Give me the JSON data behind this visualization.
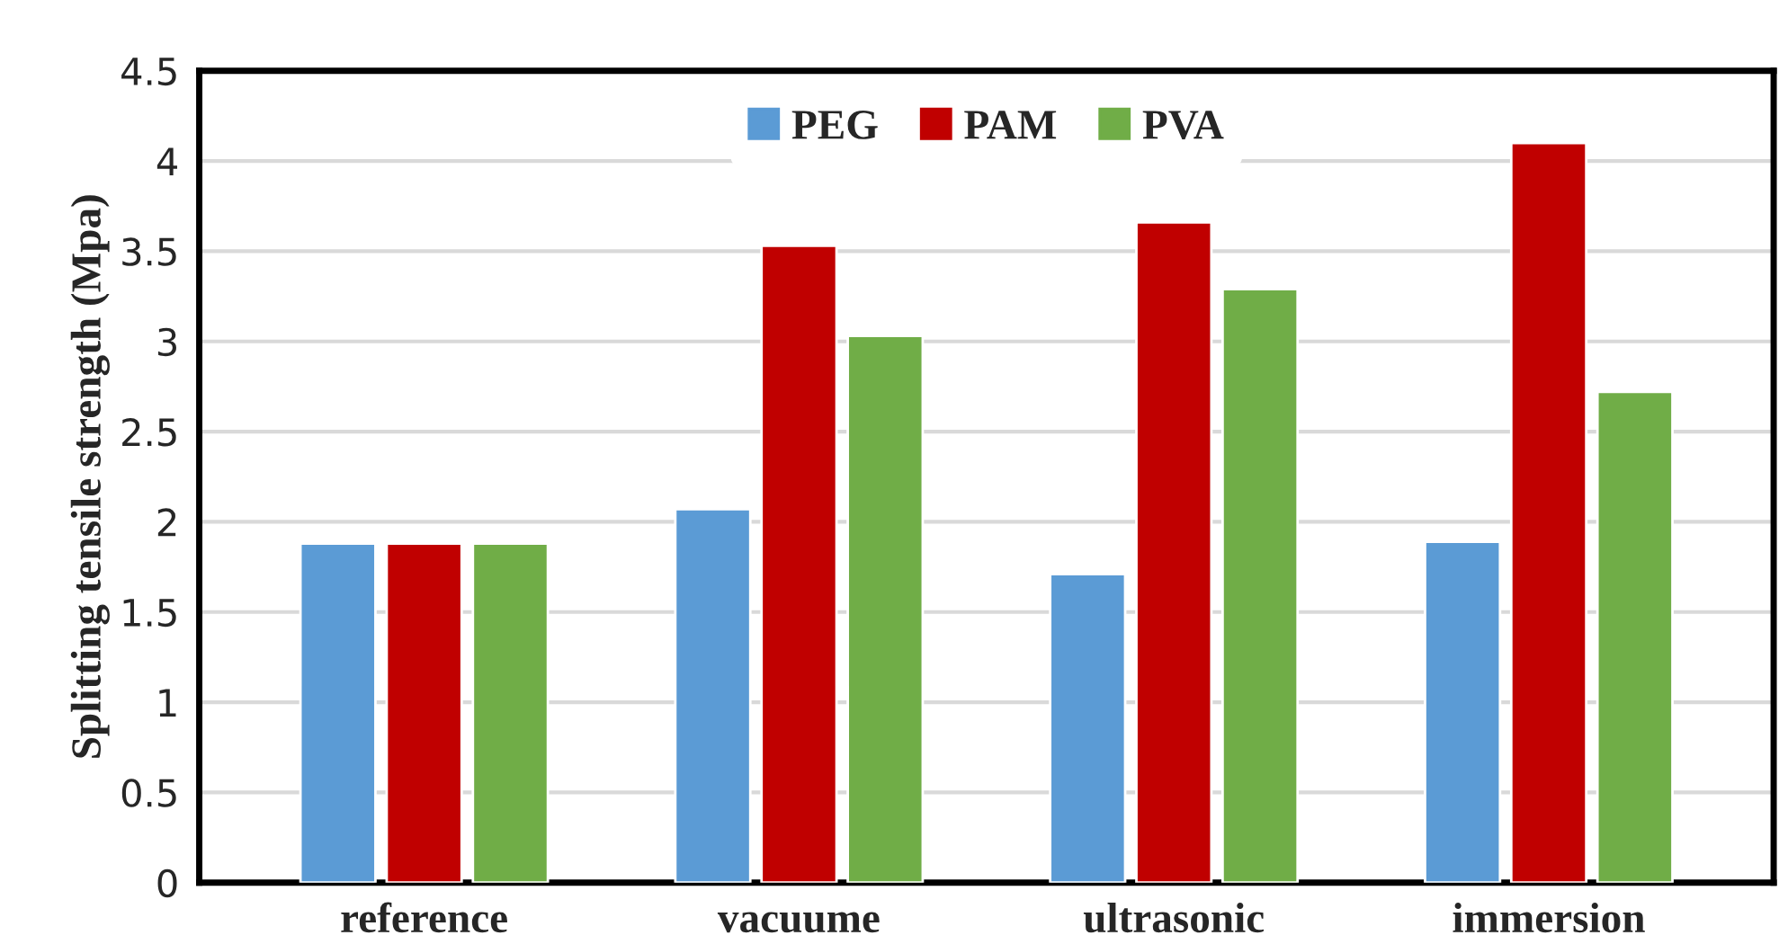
{
  "chart_data": {
    "type": "bar",
    "ylabel": "Splitting tensile strength (Mpa)",
    "categories": [
      "reference",
      "vacuume",
      "ultrasonic",
      "immersion"
    ],
    "series": [
      {
        "name": "PEG",
        "color": "#5b9bd5",
        "values": [
          1.88,
          2.07,
          1.71,
          1.89
        ]
      },
      {
        "name": "PAM",
        "color": "#c00000",
        "values": [
          1.88,
          3.53,
          3.66,
          4.1
        ]
      },
      {
        "name": "PVA",
        "color": "#70ad47",
        "values": [
          1.88,
          3.03,
          3.29,
          2.72
        ]
      }
    ],
    "ylim": [
      0,
      4.5
    ],
    "yticks": [
      0,
      0.5,
      1,
      1.5,
      2,
      2.5,
      3,
      3.5,
      4,
      4.5
    ],
    "grid": "y",
    "legend": "top"
  }
}
